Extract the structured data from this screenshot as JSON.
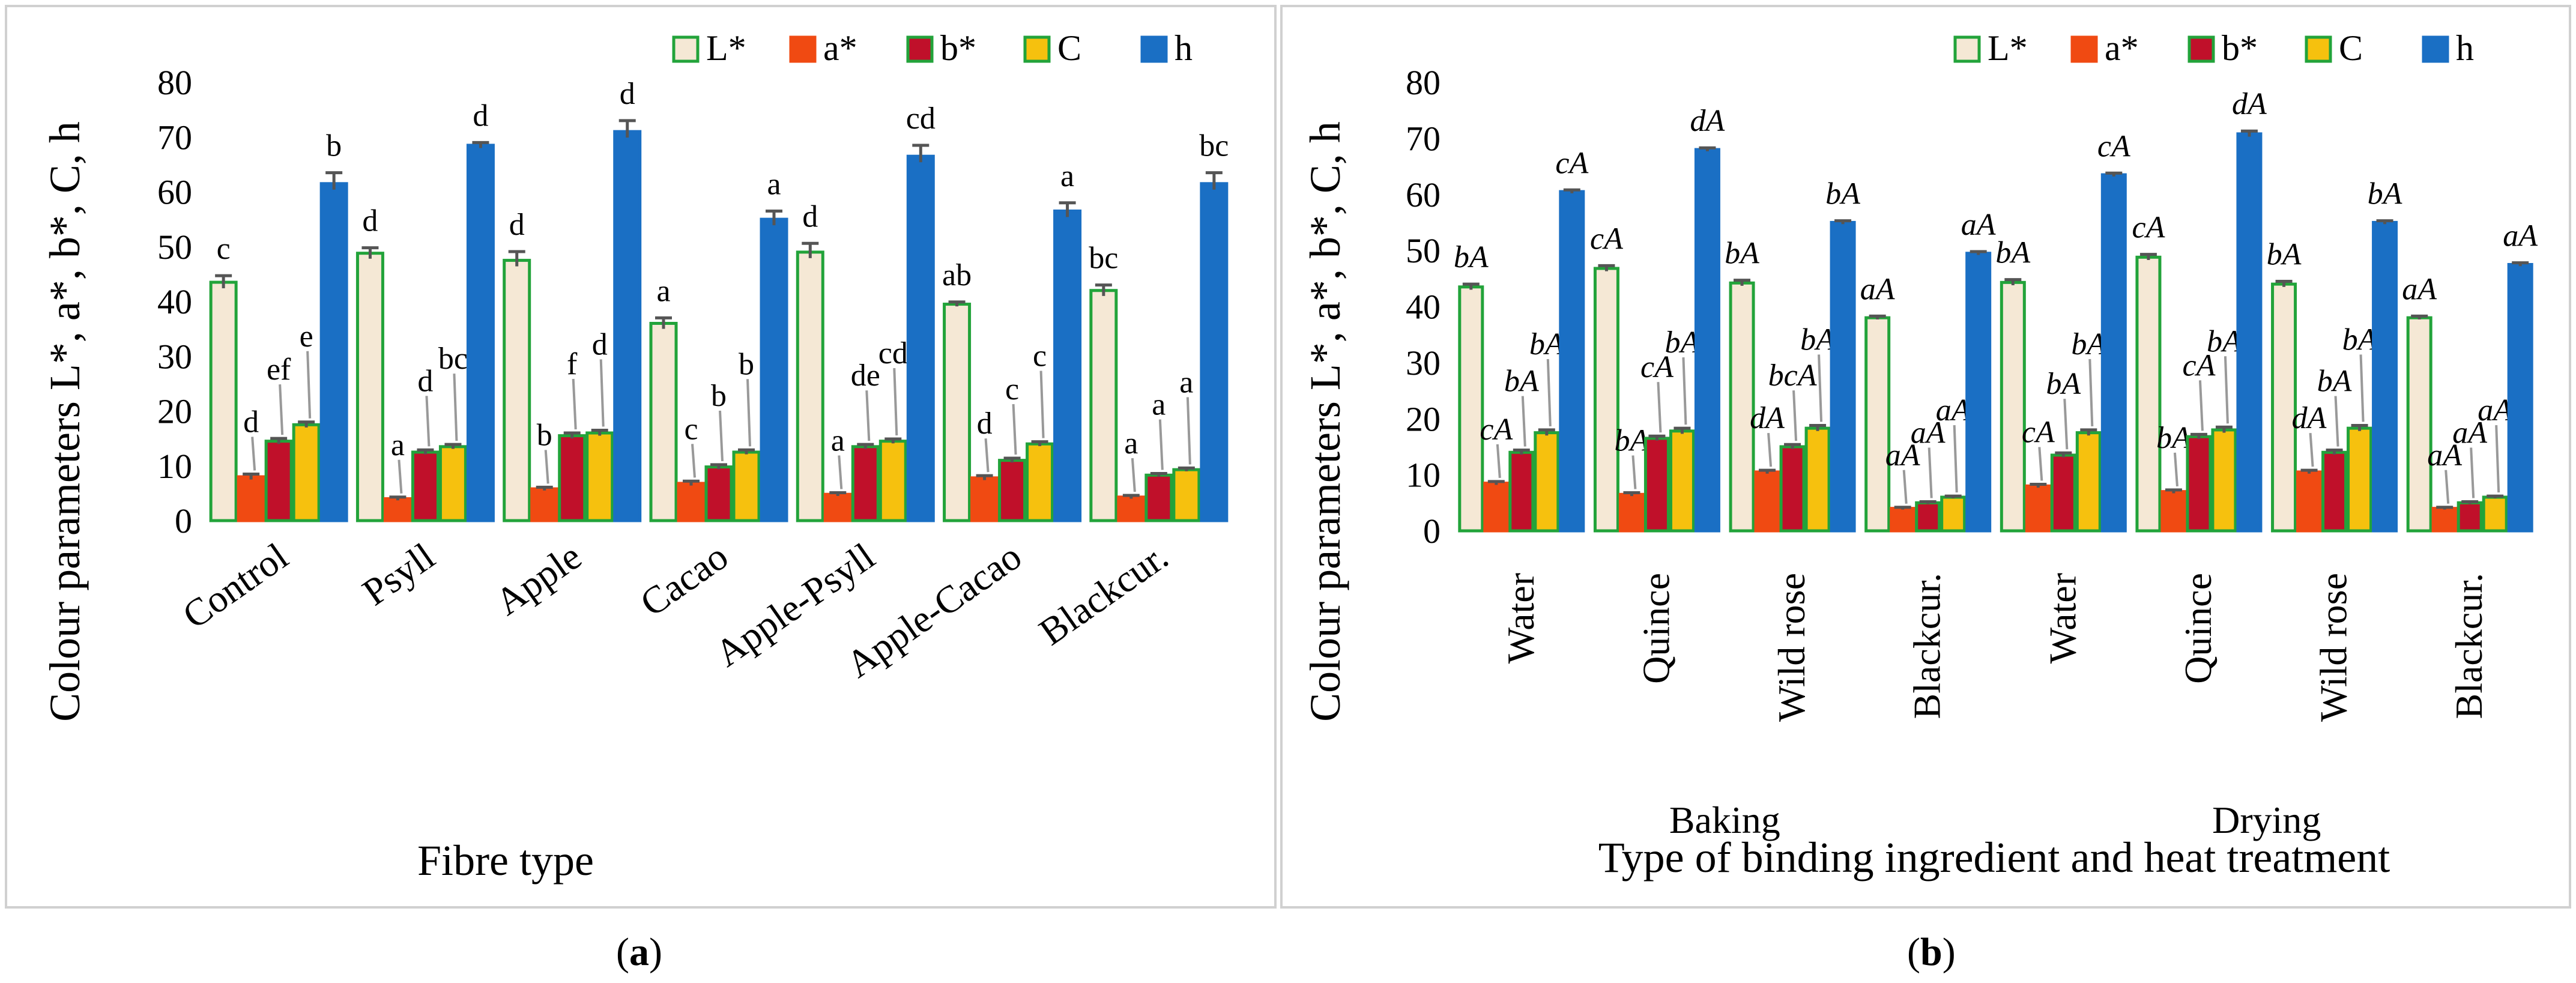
{
  "figure": {
    "label_a": "a",
    "label_b": "b"
  },
  "chart_data": [
    {
      "id": "a",
      "type": "bar",
      "title": "",
      "xlabel": "Fibre type",
      "ylabel": "Colour parameters L*, a*, b*, C, h",
      "ylim": [
        0,
        80
      ],
      "yticks": [
        0,
        10,
        20,
        30,
        40,
        50,
        60,
        70,
        80
      ],
      "legend_position": "top-right",
      "grid": false,
      "categories": [
        "Control",
        "Psyll",
        "Apple",
        "Cacao",
        "Apple-Psyll",
        "Apple-Cacao",
        "Blackcur."
      ],
      "series": [
        {
          "name": "L*",
          "color": "#f5e8d5",
          "border": "#22a33a",
          "values": [
            43.5,
            48.8,
            47.5,
            36.0,
            49.0,
            39.5,
            42.0
          ],
          "errors": [
            1.2,
            1.0,
            1.6,
            1.0,
            1.6,
            0.4,
            1.0
          ],
          "labels": [
            "c",
            "d",
            "d",
            "a",
            "d",
            "ab",
            "bc"
          ]
        },
        {
          "name": "a*",
          "color": "#f04a12",
          "border": "#f04a12",
          "values": [
            8.0,
            4.0,
            5.8,
            6.8,
            4.8,
            7.8,
            4.3
          ],
          "errors": [
            0.5,
            0.3,
            0.3,
            0.4,
            0.3,
            0.4,
            0.3
          ],
          "labels": [
            "d",
            "a",
            "b",
            "c",
            "a",
            "d",
            "a"
          ]
        },
        {
          "name": "b*",
          "color": "#c0102a",
          "border": "#22a33a",
          "values": [
            14.5,
            12.5,
            15.5,
            9.8,
            13.5,
            11.0,
            8.3
          ],
          "errors": [
            0.5,
            0.4,
            0.5,
            0.4,
            0.4,
            0.4,
            0.3
          ],
          "labels": [
            "ef",
            "d",
            "f",
            "b",
            "de",
            "c",
            "a"
          ]
        },
        {
          "name": "C",
          "color": "#f6c10e",
          "border": "#22a33a",
          "values": [
            17.5,
            13.5,
            16.0,
            12.5,
            14.5,
            14.0,
            9.3
          ],
          "errors": [
            0.5,
            0.4,
            0.5,
            0.4,
            0.4,
            0.4,
            0.3
          ],
          "labels": [
            "e",
            "bc",
            "d",
            "b",
            "cd",
            "c",
            "a"
          ]
        },
        {
          "name": "h",
          "color": "#1a6fc4",
          "border": "#1a6fc4",
          "values": [
            61.5,
            68.5,
            71.0,
            55.0,
            66.5,
            56.5,
            61.5
          ],
          "errors": [
            2.0,
            0.5,
            2.0,
            1.5,
            2.0,
            1.5,
            2.0
          ],
          "labels": [
            "b",
            "d",
            "d",
            "a",
            "cd",
            "a",
            "bc"
          ]
        }
      ]
    },
    {
      "id": "b",
      "type": "bar",
      "title": "",
      "xlabel": "Type of binding ingredient and heat treatment",
      "ylabel": "Colour parameters L*, a*, b*, C, h",
      "ylim": [
        0,
        80
      ],
      "yticks": [
        0,
        10,
        20,
        30,
        40,
        50,
        60,
        70,
        80
      ],
      "legend_position": "top-right",
      "grid": false,
      "groups": [
        "Baking",
        "Drying"
      ],
      "categories": [
        "Water",
        "Quince",
        "Wild rose",
        "Blackcur.",
        "Water",
        "Quince",
        "Wild rose",
        "Blackcur."
      ],
      "series": [
        {
          "name": "L*",
          "color": "#f5e8d5",
          "border": "#22a33a",
          "values": [
            43.5,
            46.8,
            44.2,
            38.0,
            44.3,
            48.8,
            44.0,
            38.0
          ],
          "errors": [
            0.5,
            0.5,
            0.5,
            0.3,
            0.5,
            0.5,
            0.5,
            0.3
          ],
          "labels": [
            "bA",
            "cA",
            "bA",
            "aA",
            "bA",
            "cA",
            "bA",
            "aA"
          ]
        },
        {
          "name": "a*",
          "color": "#f04a12",
          "border": "#f04a12",
          "values": [
            8.5,
            6.5,
            10.5,
            4.0,
            8.0,
            7.0,
            10.5,
            4.0
          ],
          "errors": [
            0.3,
            0.3,
            0.3,
            0.2,
            0.3,
            0.3,
            0.3,
            0.2
          ],
          "labels": [
            "cA",
            "bA",
            "dA",
            "aA",
            "cA",
            "bA",
            "dA",
            "aA"
          ]
        },
        {
          "name": "b*",
          "color": "#c0102a",
          "border": "#22a33a",
          "values": [
            14.0,
            16.5,
            15.0,
            5.0,
            13.5,
            16.8,
            14.0,
            5.0
          ],
          "errors": [
            0.4,
            0.4,
            0.4,
            0.2,
            0.4,
            0.4,
            0.4,
            0.2
          ],
          "labels": [
            "bA",
            "cA",
            "bcA",
            "aA",
            "bA",
            "cA",
            "bA",
            "aA"
          ]
        },
        {
          "name": "C",
          "color": "#f6c10e",
          "border": "#22a33a",
          "values": [
            17.5,
            17.8,
            18.3,
            6.0,
            17.5,
            18.0,
            18.3,
            6.0
          ],
          "errors": [
            0.5,
            0.5,
            0.5,
            0.2,
            0.5,
            0.5,
            0.5,
            0.2
          ],
          "labels": [
            "bA",
            "bA",
            "bA",
            "aA",
            "bA",
            "bA",
            "bA",
            "aA"
          ]
        },
        {
          "name": "h",
          "color": "#1a6fc4",
          "border": "#1a6fc4",
          "values": [
            60.5,
            68.0,
            55.0,
            49.5,
            63.5,
            70.8,
            55.0,
            47.5
          ],
          "errors": [
            0.3,
            0.3,
            0.3,
            0.3,
            0.3,
            0.5,
            0.3,
            0.3
          ],
          "labels": [
            "cA",
            "dA",
            "bA",
            "aA",
            "cA",
            "dA",
            "bA",
            "aA"
          ]
        }
      ]
    }
  ]
}
